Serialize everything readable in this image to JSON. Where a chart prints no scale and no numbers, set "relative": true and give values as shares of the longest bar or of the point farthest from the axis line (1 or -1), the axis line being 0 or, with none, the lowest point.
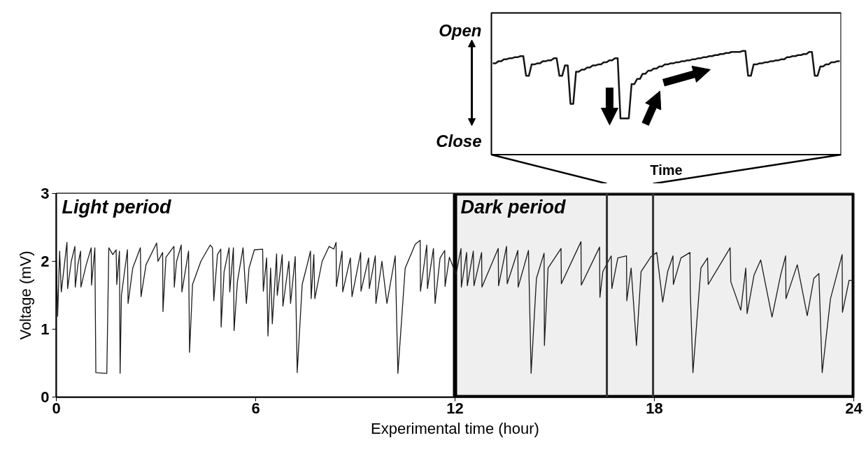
{
  "chart_data": [
    {
      "type": "line",
      "relative": true,
      "color": "#141414",
      "xlabel": "Time",
      "annotations": [
        "Open",
        "Close"
      ],
      "categories": [
        null,
        null,
        null,
        null,
        null,
        null,
        null,
        null,
        null,
        null,
        null,
        null,
        null,
        null,
        null,
        null,
        null,
        null,
        null,
        null,
        null,
        null,
        null,
        null,
        null,
        null,
        null,
        null,
        null,
        null,
        null,
        null,
        null,
        null,
        null,
        null,
        null,
        null,
        null,
        null,
        null,
        null,
        null,
        null,
        null,
        null,
        null,
        null,
        null,
        null,
        null,
        null,
        null,
        null,
        null,
        null,
        null,
        null,
        null,
        null,
        null,
        null,
        null,
        null,
        null,
        null,
        null,
        null,
        null,
        null,
        null,
        null,
        null,
        null,
        null,
        null,
        null,
        null,
        null,
        null,
        null,
        null,
        null,
        null,
        null,
        null,
        null,
        null,
        null,
        null,
        null,
        null,
        null,
        null,
        null,
        null,
        null,
        null,
        null,
        null,
        null,
        null,
        null,
        null,
        null,
        null,
        null,
        null,
        null,
        null,
        null,
        null,
        null,
        null,
        null,
        null,
        null,
        null,
        null,
        null,
        null,
        null,
        null,
        null,
        null,
        null
      ],
      "values": [
        0.88,
        0.88,
        0.9,
        0.9,
        0.92,
        0.92,
        0.93,
        0.93,
        0.94,
        0.94,
        0.95,
        0.95,
        0.76,
        0.76,
        0.87,
        0.87,
        0.88,
        0.88,
        0.9,
        0.9,
        0.91,
        0.91,
        0.93,
        0.93,
        0.76,
        0.76,
        0.86,
        0.86,
        0.49,
        0.49,
        0.8,
        0.8,
        0.82,
        0.82,
        0.84,
        0.84,
        0.86,
        0.86,
        0.87,
        0.87,
        0.89,
        0.89,
        0.91,
        0.91,
        0.93,
        0.93,
        0.35,
        0.35,
        0.35,
        0.35,
        0.68,
        0.68,
        0.73,
        0.73,
        0.78,
        0.78,
        0.81,
        0.81,
        0.83,
        0.83,
        0.85,
        0.85,
        0.87,
        0.87,
        0.88,
        0.88,
        0.89,
        0.89,
        0.9,
        0.9,
        0.91,
        0.91,
        0.92,
        0.92,
        0.93,
        0.93,
        0.94,
        0.94,
        0.95,
        0.95,
        0.96,
        0.96,
        0.97,
        0.97,
        0.98,
        0.98,
        0.99,
        0.99,
        0.99,
        0.99,
        1,
        1,
        0.76,
        0.76,
        0.87,
        0.87,
        0.88,
        0.88,
        0.89,
        0.89,
        0.9,
        0.9,
        0.91,
        0.91,
        0.92,
        0.92,
        0.94,
        0.94,
        0.95,
        0.95,
        0.96,
        0.96,
        0.97,
        0.97,
        0.99,
        0.99,
        0.76,
        0.76,
        0.85,
        0.85,
        0.87,
        0.87,
        0.89,
        0.89,
        0.9,
        0.9
      ]
    },
    {
      "type": "line",
      "color": "#1a1a1a",
      "xlabel": "Experimental time (hour)",
      "ylabel": "Voltage (mV)",
      "xlim": [
        0,
        24
      ],
      "ylim": [
        0,
        3
      ],
      "xticks": [
        0,
        6,
        12,
        18,
        24
      ],
      "yticks": [
        0,
        1,
        2,
        3
      ],
      "bands": [
        {
          "axis": "x",
          "from": 0,
          "to": 12,
          "label": "Light period",
          "color": "#ffffff"
        },
        {
          "axis": "x",
          "from": 12,
          "to": 24,
          "label": "Dark period",
          "color": "#efefef"
        }
      ],
      "ref_lines": [
        {
          "axis": "x",
          "value": 16.57,
          "color": "#333333"
        },
        {
          "axis": "x",
          "value": 17.96,
          "color": "#333333"
        }
      ],
      "x": [
        0,
        0.04,
        0.1,
        0.15,
        0.32,
        0.34,
        0.45,
        0.56,
        0.57,
        0.65,
        0.73,
        0.74,
        0.9,
        1.05,
        1.06,
        1.16,
        1.19,
        1.52,
        1.58,
        1.7,
        1.8,
        1.82,
        1.9,
        1.92,
        1.96,
        2.14,
        2.16,
        2.3,
        2.53,
        2.55,
        2.7,
        3.02,
        3.06,
        3.2,
        3.21,
        3.3,
        3.54,
        3.55,
        3.62,
        3.76,
        3.78,
        3.98,
        4.01,
        4.1,
        4.35,
        4.63,
        4.7,
        4.74,
        4.85,
        4.95,
        4.96,
        5.05,
        5.2,
        5.22,
        5.33,
        5.35,
        5.45,
        5.62,
        5.72,
        5.8,
        5.96,
        6.21,
        6.23,
        6.33,
        6.37,
        6.45,
        6.5,
        6.63,
        6.65,
        6.8,
        6.82,
        7.0,
        7.05,
        7.19,
        7.25,
        7.4,
        7.55,
        7.65,
        7.67,
        7.75,
        7.78,
        8.0,
        8.21,
        8.35,
        8.42,
        8.43,
        8.6,
        8.62,
        8.85,
        8.9,
        9.16,
        9.17,
        9.4,
        9.42,
        9.6,
        9.62,
        9.8,
        9.95,
        10.2,
        10.28,
        10.5,
        10.8,
        10.95,
        10.96,
        11.15,
        11.17,
        11.35,
        11.4,
        11.55,
        11.69,
        11.7,
        11.83,
        12.03,
        12.18,
        12.19,
        12.35,
        12.37,
        12.55,
        12.57,
        12.8,
        12.81,
        13.3,
        13.31,
        13.55,
        13.57,
        13.89,
        13.9,
        14.21,
        14.29,
        14.45,
        14.68,
        14.69,
        14.8,
        15.19,
        15.2,
        15.79,
        15.8,
        16.35,
        16.36,
        16.45,
        16.7,
        16.72,
        16.9,
        17.16,
        17.17,
        17.3,
        17.46,
        17.6,
        17.9,
        18.07,
        18.25,
        18.4,
        18.56,
        18.57,
        18.8,
        19.07,
        19.08,
        19.16,
        19.4,
        19.6,
        19.62,
        20.28,
        20.3,
        20.6,
        20.75,
        20.79,
        21.0,
        21.2,
        21.54,
        21.8,
        21.95,
        21.96,
        22.3,
        22.6,
        22.8,
        22.95,
        23.05,
        23.3,
        23.65,
        23.66,
        23.86,
        24
      ],
      "values": [
        2.03,
        1.19,
        2.15,
        1.55,
        2.28,
        1.6,
        2.0,
        2.22,
        1.62,
        1.95,
        2.15,
        1.62,
        1.95,
        2.2,
        1.65,
        2.2,
        0.36,
        0.35,
        2.2,
        2.1,
        2.17,
        1.66,
        2.15,
        0.35,
        1.5,
        2.17,
        1.38,
        1.9,
        2.2,
        1.48,
        1.95,
        2.27,
        2.0,
        2.13,
        1.26,
        2.06,
        2.22,
        1.62,
        2.0,
        2.24,
        1.55,
        2.15,
        0.66,
        1.66,
        2.0,
        2.24,
        2.2,
        1.42,
        2.1,
        2.18,
        1.03,
        1.85,
        2.2,
        1.55,
        2.2,
        0.98,
        1.7,
        2.2,
        1.38,
        1.9,
        2.17,
        2.18,
        1.56,
        2.05,
        0.9,
        1.9,
        1.08,
        2.11,
        1.5,
        2.1,
        1.34,
        2.0,
        1.38,
        2.07,
        0.36,
        1.66,
        1.95,
        2.15,
        1.45,
        2.1,
        1.45,
        2.0,
        2.22,
        2.18,
        2.28,
        1.63,
        2.15,
        1.55,
        2.05,
        1.48,
        2.13,
        1.56,
        2.05,
        1.6,
        2.08,
        1.38,
        2.0,
        1.38,
        2.08,
        0.35,
        1.9,
        2.25,
        2.31,
        1.56,
        2.24,
        1.6,
        2.19,
        1.38,
        2.05,
        2.16,
        1.63,
        2.06,
        1.81,
        2.19,
        1.62,
        2.13,
        1.64,
        2.15,
        1.64,
        2.13,
        1.62,
        2.19,
        1.64,
        2.22,
        1.67,
        2.16,
        1.62,
        2.16,
        0.35,
        1.75,
        2.12,
        0.76,
        1.9,
        2.19,
        1.67,
        2.29,
        1.65,
        2.21,
        1.47,
        1.85,
        2.08,
        1.6,
        2.05,
        2.08,
        1.42,
        1.9,
        0.76,
        1.85,
        2.07,
        2.13,
        1.4,
        1.85,
        2.08,
        1.66,
        2.05,
        2.13,
        1.56,
        0.36,
        1.9,
        2.05,
        1.66,
        2.2,
        1.7,
        1.28,
        1.9,
        1.23,
        1.8,
        2.02,
        1.18,
        1.8,
        2.08,
        1.45,
        1.95,
        1.2,
        1.75,
        1.82,
        0.36,
        1.45,
        2.1,
        1.25,
        1.72,
        1.72
      ]
    }
  ]
}
